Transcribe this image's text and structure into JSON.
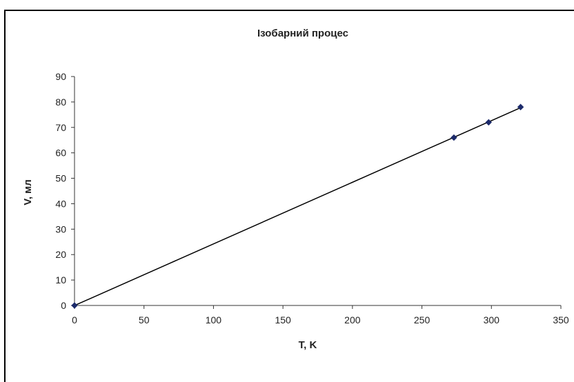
{
  "chart_data": {
    "type": "scatter",
    "title": "Ізобарний процес",
    "xlabel": "T, K",
    "ylabel": "V, мл",
    "xlim": [
      0,
      350
    ],
    "ylim": [
      0,
      90
    ],
    "x_ticks": [
      "0",
      "50",
      "100",
      "150",
      "200",
      "250",
      "300",
      "350"
    ],
    "y_ticks": [
      "0",
      "10",
      "20",
      "30",
      "40",
      "50",
      "60",
      "70",
      "80",
      "90"
    ],
    "series": [
      {
        "points": [
          {
            "x": 0,
            "y": 0
          },
          {
            "x": 273,
            "y": 66
          },
          {
            "x": 298,
            "y": 72
          },
          {
            "x": 321,
            "y": 78
          }
        ],
        "color": "#1c2a6b",
        "marker": "diamond",
        "trendline": true
      }
    ],
    "trendline_color": "#000000",
    "grid": false,
    "legend": "none"
  }
}
